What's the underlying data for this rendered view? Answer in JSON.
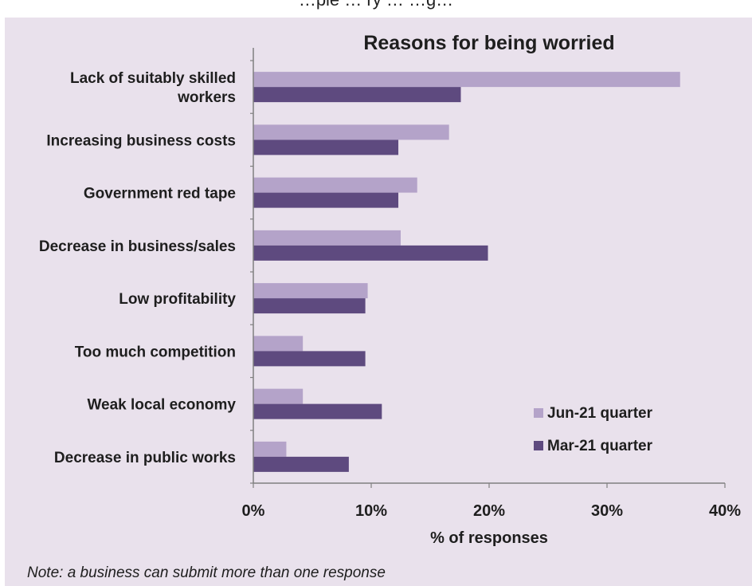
{
  "header_text": "…ple … ry … …g…",
  "colors": {
    "background": "#e9e1ec",
    "jun21": "#b4a3c9",
    "mar21": "#5e4a7f",
    "axis": "#808080",
    "text": "#1e1e1e"
  },
  "chart_data": {
    "type": "bar",
    "orientation": "horizontal",
    "title": "Reasons for being worried",
    "xlabel": "% of responses",
    "ylabel": "",
    "xlim": [
      0,
      40
    ],
    "xticks": [
      "0%",
      "10%",
      "20%",
      "30%",
      "40%"
    ],
    "grid": false,
    "legend_position": "bottom-right",
    "categories": [
      [
        "Lack of suitably skilled",
        "workers"
      ],
      [
        "Increasing business costs"
      ],
      [
        "Government red tape"
      ],
      [
        "Decrease in business/sales"
      ],
      [
        "Low profitability"
      ],
      [
        "Too much competition"
      ],
      [
        "Weak local economy"
      ],
      [
        "Decrease in public works"
      ]
    ],
    "series": [
      {
        "name": "Jun-21 quarter",
        "color": "#b4a3c9",
        "values": [
          36.2,
          16.6,
          13.9,
          12.5,
          9.7,
          4.2,
          4.2,
          2.8
        ]
      },
      {
        "name": "Mar-21 quarter",
        "color": "#5e4a7f",
        "values": [
          17.6,
          12.3,
          12.3,
          19.9,
          9.5,
          9.5,
          10.9,
          8.1
        ]
      }
    ]
  },
  "note": "Note: a business can submit more than one response"
}
